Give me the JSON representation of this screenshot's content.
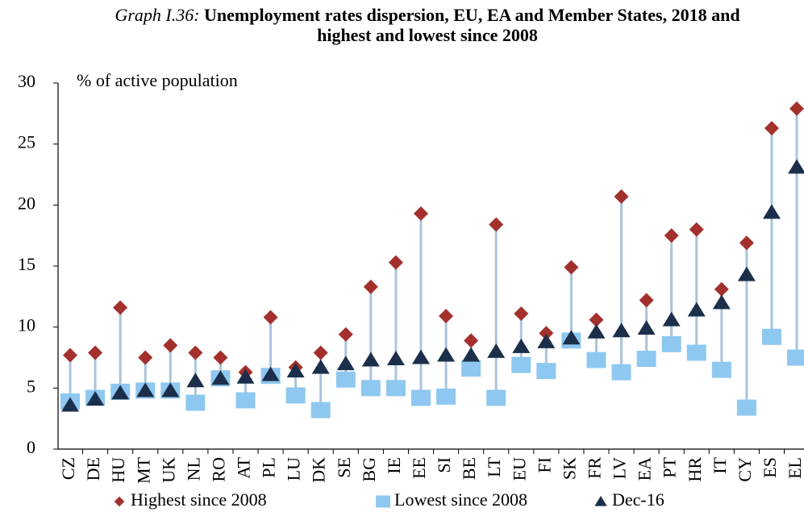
{
  "chart_data": {
    "type": "range-dot",
    "title_prefix": "Graph I.36:",
    "title": "Unemployment rates dispersion, EU, EA and Member States, 2018 and highest and lowest since 2008",
    "y_label": "% of active population",
    "categories": [
      "CZ",
      "DE",
      "HU",
      "MT",
      "UK",
      "NL",
      "RO",
      "AT",
      "PL",
      "LU",
      "DK",
      "SE",
      "BG",
      "IE",
      "EE",
      "SI",
      "BE",
      "LT",
      "EU",
      "FI",
      "SK",
      "FR",
      "LV",
      "EA",
      "PT",
      "HR",
      "IT",
      "CY",
      "ES",
      "EL"
    ],
    "series": [
      {
        "name": "Highest since 2008",
        "color": "#a3302c",
        "marker": "diamond",
        "values": [
          7.7,
          7.9,
          11.6,
          7.5,
          8.5,
          7.9,
          7.5,
          6.3,
          10.8,
          6.7,
          7.9,
          9.4,
          13.3,
          15.3,
          19.3,
          10.9,
          8.9,
          18.4,
          11.1,
          9.5,
          14.9,
          10.6,
          20.7,
          12.2,
          17.5,
          18.0,
          13.1,
          16.9,
          26.3,
          27.9
        ]
      },
      {
        "name": "Lowest since 2008",
        "color": "#8ec8f0",
        "marker": "square",
        "values": [
          3.9,
          4.2,
          4.7,
          4.8,
          4.8,
          3.8,
          5.8,
          4.0,
          6.0,
          4.4,
          3.2,
          5.7,
          5.0,
          5.0,
          4.2,
          4.3,
          6.6,
          4.2,
          6.9,
          6.4,
          8.9,
          7.3,
          6.3,
          7.4,
          8.6,
          7.9,
          6.5,
          3.4,
          9.2,
          7.5
        ]
      },
      {
        "name": "Dec-16",
        "color": "#1b2f4a",
        "marker": "triangle",
        "values": [
          3.6,
          4.1,
          4.6,
          4.8,
          4.8,
          5.6,
          5.8,
          5.9,
          6.1,
          6.4,
          6.7,
          7.0,
          7.3,
          7.4,
          7.5,
          7.7,
          7.7,
          8.0,
          8.4,
          8.8,
          9.1,
          9.6,
          9.7,
          9.9,
          10.6,
          11.4,
          12.0,
          14.3,
          19.4,
          23.1
        ]
      }
    ],
    "range_color": "#a9c4dc",
    "ylim": [
      0,
      30
    ],
    "yticks": [
      0,
      5,
      10,
      15,
      20,
      25,
      30
    ],
    "grid": false
  }
}
